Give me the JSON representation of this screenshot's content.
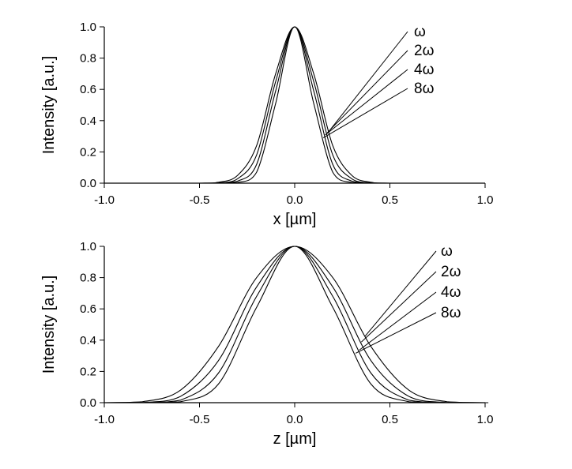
{
  "chart_data": [
    {
      "type": "line",
      "xlabel": "x [µm]",
      "ylabel": "Intensity [a.u.]",
      "xlim": [
        -1.0,
        1.0
      ],
      "ylim": [
        0.0,
        1.0
      ],
      "x_ticks": [
        "-1.0",
        "-0.5",
        "0.0",
        "0.5",
        "1.0"
      ],
      "y_ticks": [
        "0.0",
        "0.2",
        "0.4",
        "0.6",
        "0.8",
        "1.0"
      ],
      "grid": false,
      "legend": "none",
      "curve_labels": [
        "ω",
        "2ω",
        "4ω",
        "8ω"
      ],
      "series": [
        {
          "name": "ω",
          "x": [
            -0.5,
            -0.4,
            -0.3,
            -0.2,
            -0.1,
            0.0,
            0.1,
            0.2,
            0.3,
            0.4,
            0.5
          ],
          "values": [
            0.0,
            0.006,
            0.05,
            0.24,
            0.7,
            1.0,
            0.7,
            0.24,
            0.05,
            0.006,
            0.0
          ]
        },
        {
          "name": "2ω",
          "x": [
            -0.5,
            -0.4,
            -0.3,
            -0.2,
            -0.1,
            0.0,
            0.1,
            0.2,
            0.3,
            0.4,
            0.5
          ],
          "values": [
            0.0,
            0.002,
            0.028,
            0.18,
            0.65,
            1.0,
            0.65,
            0.18,
            0.028,
            0.002,
            0.0
          ]
        },
        {
          "name": "4ω",
          "x": [
            -0.5,
            -0.4,
            -0.3,
            -0.2,
            -0.1,
            0.0,
            0.1,
            0.2,
            0.3,
            0.4,
            0.5
          ],
          "values": [
            0.0,
            0.001,
            0.013,
            0.12,
            0.59,
            1.0,
            0.59,
            0.12,
            0.013,
            0.001,
            0.0
          ]
        },
        {
          "name": "8ω",
          "x": [
            -0.5,
            -0.4,
            -0.3,
            -0.2,
            -0.1,
            0.0,
            0.1,
            0.2,
            0.3,
            0.4,
            0.5
          ],
          "values": [
            0.0,
            0.0,
            0.004,
            0.07,
            0.51,
            1.0,
            0.51,
            0.07,
            0.004,
            0.0,
            0.0
          ]
        }
      ],
      "label_pointer_targets_x": [
        0.18,
        0.17,
        0.16,
        0.15
      ]
    },
    {
      "type": "line",
      "xlabel": "z [µm]",
      "ylabel": "Intensity [a.u.]",
      "xlim": [
        -1.0,
        1.0
      ],
      "ylim": [
        0.0,
        1.0
      ],
      "x_ticks": [
        "-1.0",
        "-0.5",
        "0.0",
        "0.5",
        "1.0"
      ],
      "y_ticks": [
        "0.0",
        "0.2",
        "0.4",
        "0.6",
        "0.8",
        "1.0"
      ],
      "grid": false,
      "legend": "none",
      "curve_labels": [
        "ω",
        "2ω",
        "4ω",
        "8ω"
      ],
      "series": [
        {
          "name": "ω",
          "x": [
            -1.0,
            -0.8,
            -0.6,
            -0.4,
            -0.2,
            0.0,
            0.2,
            0.4,
            0.6,
            0.8,
            1.0
          ],
          "values": [
            0.0,
            0.006,
            0.08,
            0.36,
            0.8,
            1.0,
            0.8,
            0.36,
            0.08,
            0.006,
            0.0
          ]
        },
        {
          "name": "2ω",
          "x": [
            -1.0,
            -0.8,
            -0.6,
            -0.4,
            -0.2,
            0.0,
            0.2,
            0.4,
            0.6,
            0.8,
            1.0
          ],
          "values": [
            0.0,
            0.001,
            0.04,
            0.27,
            0.74,
            1.0,
            0.74,
            0.27,
            0.04,
            0.001,
            0.0
          ]
        },
        {
          "name": "4ω",
          "x": [
            -1.0,
            -0.8,
            -0.6,
            -0.4,
            -0.2,
            0.0,
            0.2,
            0.4,
            0.6,
            0.8,
            1.0
          ],
          "values": [
            0.0,
            0.0,
            0.016,
            0.19,
            0.68,
            1.0,
            0.68,
            0.19,
            0.016,
            0.0,
            0.0
          ]
        },
        {
          "name": "8ω",
          "x": [
            -1.0,
            -0.8,
            -0.6,
            -0.4,
            -0.2,
            0.0,
            0.2,
            0.4,
            0.6,
            0.8,
            1.0
          ],
          "values": [
            0.0,
            0.0,
            0.006,
            0.12,
            0.61,
            1.0,
            0.61,
            0.12,
            0.006,
            0.0,
            0.0
          ]
        }
      ],
      "label_pointer_targets_x": [
        0.37,
        0.35,
        0.34,
        0.32
      ]
    }
  ]
}
